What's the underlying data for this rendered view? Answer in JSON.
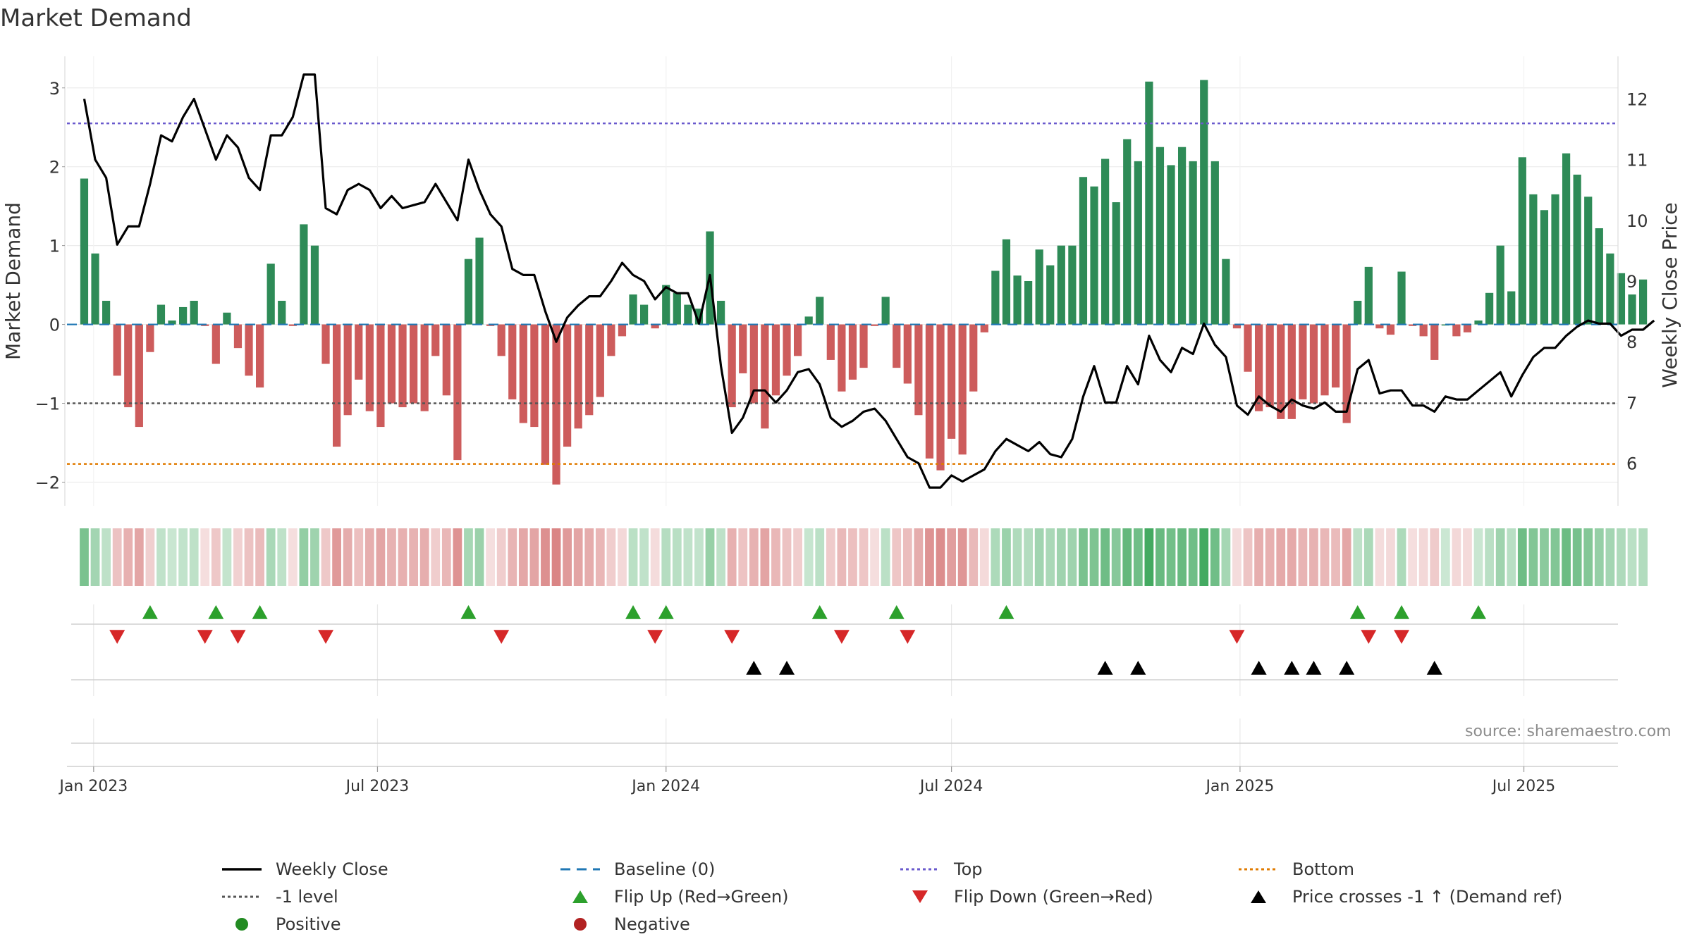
{
  "title": "Market Demand",
  "source": "source: sharemaestro.com",
  "colors": {
    "positive": "#2e8b57",
    "negative": "#cd5c5c",
    "close": "#000000",
    "baseline": "#1f77b4",
    "top": "#6a5acd",
    "minus1": "#555555",
    "bottom": "#e07b00",
    "flip_up": "#2ca02c",
    "flip_down": "#d62728",
    "cross": "#000000",
    "legend_positive": "#228b22",
    "legend_negative": "#b22222"
  },
  "chart_data": {
    "type": "bar",
    "title": "Market Demand",
    "ylabel": "Market Demand",
    "y2label": "Weekly Close Price",
    "ylim": [
      -2.3,
      3.4
    ],
    "y2lim": [
      5.3,
      12.7
    ],
    "yticks": [
      -2,
      -1,
      0,
      1,
      2,
      3
    ],
    "y2ticks": [
      6,
      7,
      8,
      9,
      10,
      11,
      12
    ],
    "x_start": "2022-12-26",
    "x_step_days": 7,
    "x_range": [
      "2022-12-15",
      "2025-08-30"
    ],
    "xticks": [
      {
        "date": "2023-01-01",
        "label": "Jan 2023"
      },
      {
        "date": "2023-07-01",
        "label": "Jul 2023"
      },
      {
        "date": "2024-01-01",
        "label": "Jan 2024"
      },
      {
        "date": "2024-07-01",
        "label": "Jul 2024"
      },
      {
        "date": "2025-01-01",
        "label": "Jan 2025"
      },
      {
        "date": "2025-07-01",
        "label": "Jul 2025"
      }
    ],
    "reference_lines": {
      "top": 2.55,
      "minus1": -1,
      "bottom": -1.77,
      "baseline": 0
    },
    "series": [
      {
        "name": "Market Demand",
        "values": [
          1.85,
          0.9,
          0.3,
          -0.65,
          -1.05,
          -1.3,
          -0.35,
          0.25,
          0.05,
          0.22,
          0.3,
          -0.02,
          -0.5,
          0.15,
          -0.3,
          -0.65,
          -0.8,
          0.77,
          0.3,
          -0.02,
          1.27,
          1.0,
          -0.5,
          -1.55,
          -1.15,
          -0.7,
          -1.1,
          -1.3,
          -1.0,
          -1.05,
          -1.0,
          -1.1,
          -0.4,
          -0.9,
          -1.72,
          0.83,
          1.1,
          -0.02,
          -0.4,
          -0.95,
          -1.25,
          -1.3,
          -1.78,
          -2.03,
          -1.55,
          -1.32,
          -1.15,
          -0.92,
          -0.4,
          -0.15,
          0.38,
          0.25,
          -0.05,
          0.5,
          0.4,
          0.25,
          0.2,
          1.18,
          0.3,
          -1.05,
          -0.62,
          -1.0,
          -1.32,
          -0.9,
          -0.65,
          -0.4,
          0.1,
          0.35,
          -0.45,
          -0.85,
          -0.7,
          -0.55,
          -0.02,
          0.35,
          -0.55,
          -0.75,
          -1.15,
          -1.7,
          -1.85,
          -1.45,
          -1.65,
          -0.85,
          -0.1,
          0.68,
          1.08,
          0.62,
          0.55,
          0.95,
          0.75,
          1.0,
          1.0,
          1.87,
          1.75,
          2.1,
          1.55,
          2.35,
          2.07,
          3.08,
          2.25,
          2.02,
          2.25,
          2.07,
          3.1,
          2.07,
          0.83,
          -0.05,
          -0.6,
          -1.1,
          -1.05,
          -1.2,
          -1.2,
          -0.95,
          -1.0,
          -0.9,
          -0.8,
          -1.25,
          0.3,
          0.73,
          -0.05,
          -0.13,
          0.67,
          -0.02,
          -0.15,
          -0.45,
          0.0,
          -0.15,
          -0.1,
          0.05,
          0.4,
          1.0,
          0.42,
          2.12,
          1.65,
          1.45,
          1.65,
          2.17,
          1.9,
          1.62,
          1.22,
          0.9,
          0.65,
          0.38,
          0.57
        ]
      },
      {
        "name": "Weekly Close",
        "axis": "right",
        "values": [
          12.0,
          11.0,
          10.7,
          9.6,
          9.9,
          9.9,
          10.6,
          11.4,
          11.3,
          11.7,
          12.0,
          11.5,
          11.0,
          11.4,
          11.2,
          10.7,
          10.5,
          11.4,
          11.4,
          11.7,
          12.4,
          12.4,
          10.2,
          10.1,
          10.5,
          10.6,
          10.5,
          10.2,
          10.4,
          10.2,
          10.25,
          10.3,
          10.6,
          10.3,
          10.0,
          11.0,
          10.5,
          10.1,
          9.9,
          9.2,
          9.1,
          9.1,
          8.5,
          8.0,
          8.4,
          8.6,
          8.75,
          8.75,
          9.0,
          9.3,
          9.1,
          9.0,
          8.7,
          8.9,
          8.8,
          8.8,
          8.3,
          9.1,
          7.6,
          6.5,
          6.75,
          7.2,
          7.2,
          7.0,
          7.2,
          7.5,
          7.55,
          7.3,
          6.75,
          6.6,
          6.7,
          6.85,
          6.9,
          6.7,
          6.4,
          6.1,
          6.0,
          5.6,
          5.6,
          5.8,
          5.7,
          5.8,
          5.9,
          6.2,
          6.4,
          6.3,
          6.2,
          6.35,
          6.15,
          6.1,
          6.4,
          7.1,
          7.6,
          7.0,
          7.0,
          7.6,
          7.3,
          8.1,
          7.7,
          7.5,
          7.9,
          7.8,
          8.3,
          7.95,
          7.75,
          6.95,
          6.8,
          7.1,
          6.95,
          6.85,
          7.05,
          6.95,
          6.9,
          7.0,
          6.85,
          6.85,
          7.55,
          7.7,
          7.15,
          7.2,
          7.2,
          6.95,
          6.95,
          6.85,
          7.1,
          7.05,
          7.05,
          7.2,
          7.35,
          7.5,
          7.1,
          7.45,
          7.75,
          7.9,
          7.9,
          8.1,
          8.25,
          8.35,
          8.3,
          8.3,
          8.1,
          8.2,
          8.2,
          8.35
        ]
      }
    ],
    "flip_up_weeks": [
      6,
      12,
      16,
      35,
      50,
      53,
      67,
      74,
      84,
      116,
      120,
      127
    ],
    "flip_down_weeks": [
      3,
      11,
      14,
      22,
      38,
      52,
      59,
      69,
      75,
      105,
      117,
      120
    ],
    "cross_weeks": [
      61,
      64,
      93,
      96,
      107,
      110,
      112,
      115,
      123
    ]
  },
  "legend": {
    "weekly_close": "Weekly Close",
    "baseline": "Baseline (0)",
    "top": "Top",
    "bottom": "Bottom",
    "minus1": "-1 level",
    "flip_up": "Flip Up (Red→Green)",
    "flip_down": "Flip Down (Green→Red)",
    "cross": "Price crosses -1 ↑ (Demand ref)",
    "positive": "Positive",
    "negative": "Negative"
  }
}
